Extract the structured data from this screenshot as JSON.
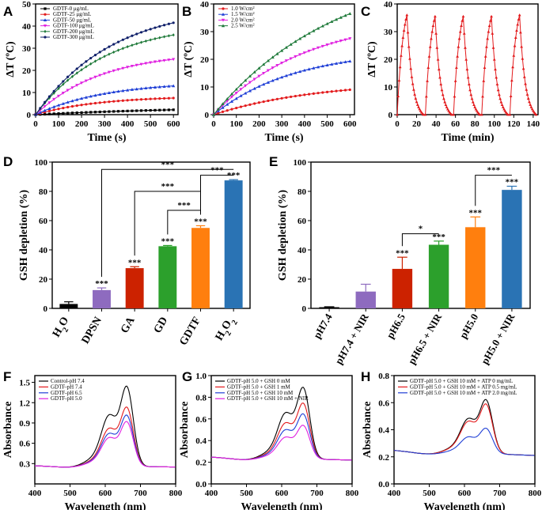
{
  "chart_data": [
    {
      "panel": "A",
      "type": "line",
      "xlabel": "Time (s)",
      "ylabel": "ΔT (ºC)",
      "xlim": [
        0,
        620
      ],
      "ylim": [
        0,
        50
      ],
      "xticks": [
        0,
        100,
        200,
        300,
        400,
        500,
        600
      ],
      "yticks": [
        0,
        10,
        20,
        30,
        40,
        50
      ],
      "legend_position": "top-left",
      "series": [
        {
          "name": "GDTF-0 μg/mL",
          "color": "#000000",
          "marker": "square",
          "final": 2.2,
          "k": 0.8
        },
        {
          "name": "GDTF-25 μg/mL",
          "color": "#e31a1c",
          "marker": "circle",
          "final": 7.5,
          "k": 2.2
        },
        {
          "name": "GDTF-50 μg/mL",
          "color": "#1f3fd6",
          "marker": "triangle",
          "final": 13,
          "k": 2.0
        },
        {
          "name": "GDTF-100 μg/mL",
          "color": "#e020e0",
          "marker": "triangle-down",
          "final": 25,
          "k": 2.1
        },
        {
          "name": "GDTF-200 μg/mL",
          "color": "#1f7a3a",
          "marker": "diamond",
          "final": 36,
          "k": 2.0
        },
        {
          "name": "GDTF-300 μg/mL",
          "color": "#10206a",
          "marker": "star",
          "final": 41.5,
          "k": 1.8
        }
      ]
    },
    {
      "panel": "B",
      "type": "line",
      "xlabel": "Time (s)",
      "ylabel": "ΔT (ºC)",
      "xlim": [
        0,
        620
      ],
      "ylim": [
        0,
        40
      ],
      "xticks": [
        0,
        100,
        200,
        300,
        400,
        500,
        600
      ],
      "yticks": [
        0,
        10,
        20,
        30,
        40
      ],
      "legend_position": "top-left",
      "series": [
        {
          "name": "1.0 W/cm²",
          "color": "#e31a1c",
          "marker": "circle",
          "final": 9,
          "k": 1.3
        },
        {
          "name": "1.5 W/cm²",
          "color": "#1f3fd6",
          "marker": "triangle",
          "final": 19.3,
          "k": 1.7
        },
        {
          "name": "2.0 W/cm²",
          "color": "#e020e0",
          "marker": "triangle-down",
          "final": 27.5,
          "k": 1.5
        },
        {
          "name": "2.5 W/cm²",
          "color": "#1f7a3a",
          "marker": "triangle",
          "final": 36.5,
          "k": 1.1
        }
      ]
    },
    {
      "panel": "C",
      "type": "line",
      "xlabel": "Time (min)",
      "ylabel": "ΔT (ºC)",
      "xlim": [
        0,
        145
      ],
      "ylim": [
        0,
        40
      ],
      "xticks": [
        0,
        20,
        40,
        60,
        80,
        100,
        120,
        140
      ],
      "yticks": [
        0,
        10,
        20,
        30,
        40
      ],
      "cycles": [
        {
          "start": 0,
          "peak": 36
        },
        {
          "start": 29,
          "peak": 35.5
        },
        {
          "start": 58,
          "peak": 35.5
        },
        {
          "start": 87,
          "peak": 35.5
        },
        {
          "start": 116,
          "peak": 36
        }
      ],
      "heat_minutes": 10,
      "cool_minutes": 17,
      "color": "#e31a1c"
    },
    {
      "panel": "D",
      "type": "bar",
      "ylabel": "GSH depletion (%)",
      "ylim": [
        0,
        100
      ],
      "yticks": [
        0,
        20,
        40,
        60,
        80,
        100
      ],
      "categories": [
        "H2O",
        "DPSN",
        "GA",
        "GD",
        "GDTF",
        "H2O2"
      ],
      "category_display": [
        {
          "base": "H",
          "sub1": "2",
          "mid": "O",
          "sub2": ""
        },
        {
          "base": "DPSN",
          "sub1": "",
          "mid": "",
          "sub2": ""
        },
        {
          "base": "GA",
          "sub1": "",
          "mid": "",
          "sub2": ""
        },
        {
          "base": "GD",
          "sub1": "",
          "mid": "",
          "sub2": ""
        },
        {
          "base": "GDTF",
          "sub1": "",
          "mid": "",
          "sub2": ""
        },
        {
          "base": "H",
          "sub1": "2",
          "mid": "O",
          "sub2": "2"
        }
      ],
      "values": [
        3,
        12.5,
        27.5,
        42.5,
        55,
        87.5
      ],
      "errors": [
        1.5,
        1.5,
        1,
        0.5,
        1.5,
        0.5
      ],
      "colors": [
        "#000000",
        "#8e6bbf",
        "#cc2200",
        "#2ca02c",
        "#ff7f0e",
        "#2a73b4"
      ],
      "significance": [
        "",
        "***",
        "***",
        "***",
        "***",
        "***"
      ],
      "brackets": [
        {
          "from": 1,
          "to": 5,
          "y": 95,
          "label": "***"
        },
        {
          "from": 4,
          "to": 5,
          "y": 91,
          "label": "***"
        },
        {
          "from": 2,
          "to": 4,
          "y": 80,
          "label": "***"
        },
        {
          "from": 3,
          "to": 4,
          "y": 67,
          "label": "***"
        }
      ]
    },
    {
      "panel": "E",
      "type": "bar",
      "ylabel": "GSH depletion (%)",
      "ylim": [
        0,
        100
      ],
      "yticks": [
        0,
        20,
        40,
        60,
        80,
        100
      ],
      "categories": [
        "pH7.4",
        "pH7.4 + NIR",
        "pH6.5",
        "pH6.5 + NIR",
        "pH5.0",
        "pH5.0 + NIR"
      ],
      "values": [
        0.8,
        11.5,
        27,
        43.5,
        55.5,
        81
      ],
      "errors": [
        0.3,
        5,
        8,
        2.5,
        7,
        2.5
      ],
      "colors": [
        "#000000",
        "#8e6bbf",
        "#cc2200",
        "#2ca02c",
        "#ff7f0e",
        "#2a73b4"
      ],
      "significance": [
        "",
        "",
        "***",
        "***",
        "***",
        "***"
      ],
      "brackets": [
        {
          "from": 2,
          "to": 3,
          "y": 51,
          "label": "*"
        },
        {
          "from": 4,
          "to": 5,
          "y": 91,
          "label": "***"
        }
      ]
    },
    {
      "panel": "F",
      "type": "line",
      "xlabel": "Wavelength (nm)",
      "ylabel": "Absorbance",
      "xlim": [
        400,
        800
      ],
      "ylim": [
        0,
        1.6
      ],
      "xticks": [
        400,
        500,
        600,
        700,
        800
      ],
      "yticks": [
        0.3,
        0.6,
        0.9,
        1.2,
        1.5
      ],
      "legend_position": "top-left",
      "series": [
        {
          "name": "Control-pH 7.4",
          "color": "#000000",
          "scale": 1.0
        },
        {
          "name": "GDTF-pH 7.4",
          "color": "#e31a1c",
          "scale": 0.74
        },
        {
          "name": "GDTF-pH 6.5",
          "color": "#1f3fd6",
          "scale": 0.64
        },
        {
          "name": "GDTF-pH 5.0",
          "color": "#e020e0",
          "scale": 0.56
        }
      ],
      "spectrum": {
        "baseline_left": 0.27,
        "baseline_right": 0.25,
        "peak": 1.4
      }
    },
    {
      "panel": "G",
      "type": "line",
      "xlabel": "Wavelength (nm)",
      "ylabel": "Absorbance",
      "xlim": [
        400,
        800
      ],
      "ylim": [
        0,
        1.0
      ],
      "xticks": [
        400,
        500,
        600,
        700,
        800
      ],
      "yticks": [
        0.0,
        0.2,
        0.4,
        0.6,
        0.8,
        1.0
      ],
      "legend_position": "top-left",
      "series": [
        {
          "name": "GDTF-pH 5.0 + GSH 0 mM",
          "color": "#000000",
          "scale": 1.0
        },
        {
          "name": "GDTF-pH 5.0 + GSH 1 mM",
          "color": "#e31a1c",
          "scale": 0.78
        },
        {
          "name": "GDTF-pH 5.0 + GSH 10 mM",
          "color": "#1f3fd6",
          "scale": 0.63
        },
        {
          "name": "GDTF-pH 5.0 + GSH 10 mM + NIR",
          "color": "#e020e0",
          "scale": 0.47
        }
      ],
      "spectrum": {
        "baseline_left": 0.25,
        "baseline_right": 0.22,
        "peak": 0.88
      }
    },
    {
      "panel": "H",
      "type": "line",
      "xlabel": "Wavelength (nm)",
      "ylabel": "Absorbance",
      "xlim": [
        400,
        800
      ],
      "ylim": [
        0,
        0.8
      ],
      "xticks": [
        400,
        500,
        600,
        700,
        800
      ],
      "yticks": [
        0.0,
        0.2,
        0.4,
        0.6,
        0.8
      ],
      "legend_position": "top-left",
      "series": [
        {
          "name": "GDTF-pH 5.0 + GSH 10 mM + ATP 0 mg/mL",
          "color": "#000000",
          "scale": 1.0
        },
        {
          "name": "GDTF-pH 5.0 + GSH 10 mM + ATP 0.5 mg/mL",
          "color": "#e31a1c",
          "scale": 0.92
        },
        {
          "name": "GDTF-pH 5.0 + GSH 10 mM + ATP 2.0 mg/mL",
          "color": "#1f3fd6",
          "scale": 0.47
        }
      ],
      "spectrum": {
        "baseline_left": 0.25,
        "baseline_right": 0.21,
        "peak": 0.63
      }
    }
  ]
}
